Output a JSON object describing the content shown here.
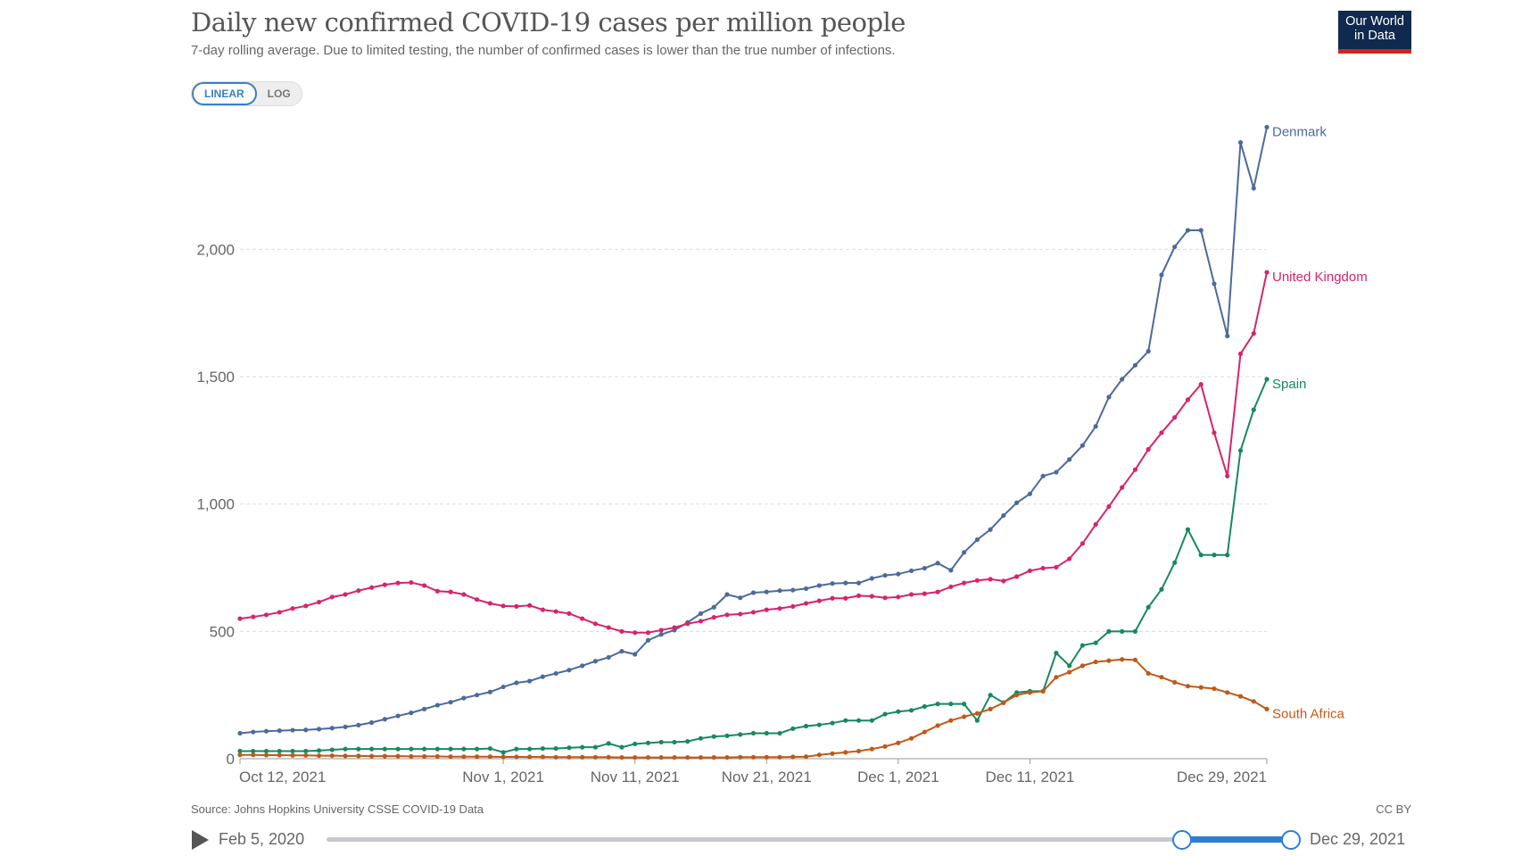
{
  "header": {
    "title": "Daily new confirmed COVID-19 cases per million people",
    "subtitle": "7-day rolling average. Due to limited testing, the number of confirmed cases is lower than the true number of infections.",
    "scale_toggle": {
      "linear": "LINEAR",
      "log": "LOG",
      "selected": "LINEAR"
    },
    "logo": {
      "line1": "Our World",
      "line2": "in Data"
    }
  },
  "footer": {
    "source": "Source: Johns Hopkins University CSSE COVID-19 Data",
    "license": "CC BY",
    "timeline_start": "Feb 5, 2020",
    "timeline_end": "Dec 29, 2021"
  },
  "chart_data": {
    "type": "line",
    "title": "Daily new confirmed COVID-19 cases per million people",
    "ylim": [
      0,
      2480
    ],
    "xlim": [
      "2021-10-12",
      "2021-12-29"
    ],
    "grid": "horizontal dashed",
    "legend": "inline labels at line ends (right)",
    "y_ticks": [
      {
        "value": 0,
        "label": "0"
      },
      {
        "value": 500,
        "label": "500"
      },
      {
        "value": 1000,
        "label": "1,000"
      },
      {
        "value": 1500,
        "label": "1,500"
      },
      {
        "value": 2000,
        "label": "2,000"
      }
    ],
    "x_ticks": [
      {
        "date": "2021-10-12",
        "label": "Oct 12, 2021"
      },
      {
        "date": "2021-11-01",
        "label": "Nov 1, 2021"
      },
      {
        "date": "2021-11-11",
        "label": "Nov 11, 2021"
      },
      {
        "date": "2021-11-21",
        "label": "Nov 21, 2021"
      },
      {
        "date": "2021-12-01",
        "label": "Dec 1, 2021"
      },
      {
        "date": "2021-12-11",
        "label": "Dec 11, 2021"
      },
      {
        "date": "2021-12-29",
        "label": "Dec 29, 2021"
      }
    ],
    "x": [
      "2021-10-12",
      "2021-10-13",
      "2021-10-14",
      "2021-10-15",
      "2021-10-16",
      "2021-10-17",
      "2021-10-18",
      "2021-10-19",
      "2021-10-20",
      "2021-10-21",
      "2021-10-22",
      "2021-10-23",
      "2021-10-24",
      "2021-10-25",
      "2021-10-26",
      "2021-10-27",
      "2021-10-28",
      "2021-10-29",
      "2021-10-30",
      "2021-10-31",
      "2021-11-01",
      "2021-11-02",
      "2021-11-03",
      "2021-11-04",
      "2021-11-05",
      "2021-11-06",
      "2021-11-07",
      "2021-11-08",
      "2021-11-09",
      "2021-11-10",
      "2021-11-11",
      "2021-11-12",
      "2021-11-13",
      "2021-11-14",
      "2021-11-15",
      "2021-11-16",
      "2021-11-17",
      "2021-11-18",
      "2021-11-19",
      "2021-11-20",
      "2021-11-21",
      "2021-11-22",
      "2021-11-23",
      "2021-11-24",
      "2021-11-25",
      "2021-11-26",
      "2021-11-27",
      "2021-11-28",
      "2021-11-29",
      "2021-11-30",
      "2021-12-01",
      "2021-12-02",
      "2021-12-03",
      "2021-12-04",
      "2021-12-05",
      "2021-12-06",
      "2021-12-07",
      "2021-12-08",
      "2021-12-09",
      "2021-12-10",
      "2021-12-11",
      "2021-12-12",
      "2021-12-13",
      "2021-12-14",
      "2021-12-15",
      "2021-12-16",
      "2021-12-17",
      "2021-12-18",
      "2021-12-19",
      "2021-12-20",
      "2021-12-21",
      "2021-12-22",
      "2021-12-23",
      "2021-12-24",
      "2021-12-25",
      "2021-12-26",
      "2021-12-27",
      "2021-12-28",
      "2021-12-29"
    ],
    "series": [
      {
        "name": "Denmark",
        "color": "#4c6a9c",
        "values": [
          100,
          105,
          108,
          110,
          112,
          113,
          116,
          120,
          125,
          132,
          142,
          155,
          168,
          180,
          195,
          210,
          222,
          238,
          250,
          262,
          282,
          298,
          305,
          322,
          335,
          348,
          365,
          383,
          398,
          422,
          410,
          465,
          488,
          505,
          535,
          570,
          595,
          645,
          632,
          652,
          655,
          660,
          662,
          668,
          680,
          688,
          690,
          690,
          708,
          720,
          725,
          738,
          748,
          768,
          740,
          810,
          860,
          900,
          955,
          1005,
          1040,
          1110,
          1125,
          1175,
          1230,
          1305,
          1420,
          1490,
          1545,
          1600,
          1900,
          2010,
          2075,
          2075,
          1865,
          1660,
          2420,
          2240,
          2480
        ]
      },
      {
        "name": "United Kingdom",
        "color": "#d6246e",
        "values": [
          550,
          557,
          565,
          575,
          590,
          600,
          615,
          635,
          645,
          660,
          672,
          683,
          690,
          692,
          680,
          658,
          655,
          645,
          625,
          610,
          600,
          598,
          602,
          585,
          578,
          570,
          550,
          530,
          515,
          500,
          495,
          495,
          505,
          515,
          530,
          540,
          555,
          565,
          568,
          575,
          585,
          590,
          598,
          610,
          620,
          630,
          630,
          640,
          638,
          632,
          635,
          645,
          648,
          655,
          675,
          690,
          700,
          705,
          698,
          715,
          738,
          748,
          752,
          785,
          845,
          920,
          990,
          1065,
          1135,
          1215,
          1280,
          1340,
          1410,
          1470,
          1280,
          1110,
          1590,
          1670,
          1910
        ]
      },
      {
        "name": "Spain",
        "color": "#18895e",
        "values": [
          30,
          30,
          30,
          30,
          30,
          30,
          32,
          35,
          38,
          38,
          38,
          38,
          38,
          38,
          38,
          38,
          38,
          38,
          38,
          40,
          25,
          38,
          38,
          40,
          40,
          43,
          45,
          45,
          60,
          45,
          58,
          62,
          65,
          65,
          68,
          80,
          87,
          90,
          95,
          100,
          100,
          100,
          118,
          128,
          133,
          140,
          150,
          150,
          150,
          175,
          185,
          190,
          205,
          215,
          215,
          215,
          150,
          250,
          220,
          260,
          265,
          265,
          415,
          365,
          445,
          455,
          500,
          500,
          500,
          595,
          665,
          770,
          900,
          800,
          800,
          800,
          1210,
          1370,
          1490
        ]
      },
      {
        "name": "South Africa",
        "color": "#c05917",
        "values": [
          15,
          15,
          14,
          14,
          13,
          13,
          12,
          12,
          11,
          11,
          10,
          10,
          10,
          9,
          9,
          9,
          8,
          8,
          8,
          8,
          7,
          7,
          7,
          7,
          6,
          6,
          6,
          6,
          6,
          5,
          5,
          5,
          5,
          5,
          5,
          5,
          5,
          5,
          6,
          6,
          6,
          6,
          7,
          8,
          15,
          20,
          25,
          30,
          38,
          48,
          62,
          80,
          105,
          130,
          150,
          165,
          178,
          195,
          220,
          250,
          260,
          265,
          320,
          340,
          365,
          380,
          385,
          390,
          388,
          335,
          320,
          300,
          285,
          280,
          275,
          260,
          245,
          225,
          195
        ]
      }
    ]
  }
}
